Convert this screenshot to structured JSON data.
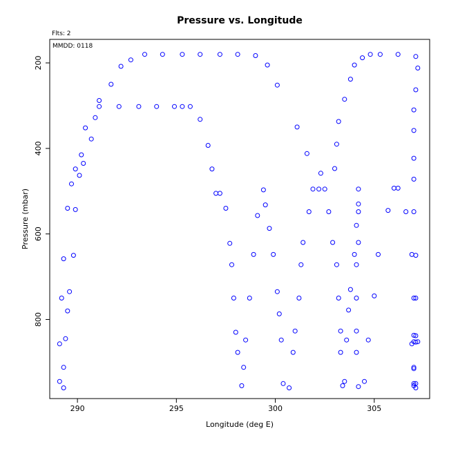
{
  "chart_data": {
    "type": "scatter",
    "title": "Pressure vs. Longitude",
    "annotations": {
      "flts": "Flts: 2",
      "mmdd": "MMDD: 0118"
    },
    "xlabel": "Longitude (deg E)",
    "ylabel": "Pressure (mbar)",
    "xlim": [
      288.6,
      307.8
    ],
    "ylim": [
      985,
      145
    ],
    "y_inverted": true,
    "x_ticks": [
      290,
      295,
      300,
      305
    ],
    "y_ticks": [
      200,
      400,
      600,
      800
    ],
    "grid": false,
    "marker": "open-circle",
    "marker_color": "#0000ff",
    "points": [
      [
        292.2,
        208
      ],
      [
        292.7,
        193
      ],
      [
        293.4,
        180
      ],
      [
        294.3,
        180
      ],
      [
        295.3,
        180
      ],
      [
        296.2,
        180
      ],
      [
        297.2,
        180
      ],
      [
        298.1,
        180
      ],
      [
        299.0,
        183
      ],
      [
        299.6,
        205
      ],
      [
        300.1,
        252
      ],
      [
        291.7,
        250
      ],
      [
        291.1,
        288
      ],
      [
        291.1,
        302
      ],
      [
        290.9,
        328
      ],
      [
        290.7,
        378
      ],
      [
        290.4,
        352
      ],
      [
        290.2,
        415
      ],
      [
        290.3,
        435
      ],
      [
        289.9,
        448
      ],
      [
        290.1,
        463
      ],
      [
        289.7,
        483
      ],
      [
        289.5,
        540
      ],
      [
        289.9,
        543
      ],
      [
        289.8,
        650
      ],
      [
        289.3,
        658
      ],
      [
        289.6,
        735
      ],
      [
        289.2,
        750
      ],
      [
        289.5,
        780
      ],
      [
        289.4,
        845
      ],
      [
        289.1,
        857
      ],
      [
        289.3,
        912
      ],
      [
        289.1,
        945
      ],
      [
        289.3,
        960
      ],
      [
        292.1,
        302
      ],
      [
        293.1,
        302
      ],
      [
        294.0,
        302
      ],
      [
        294.9,
        302
      ],
      [
        295.3,
        302
      ],
      [
        295.7,
        302
      ],
      [
        296.2,
        332
      ],
      [
        296.6,
        393
      ],
      [
        296.8,
        448
      ],
      [
        297.0,
        505
      ],
      [
        297.2,
        505
      ],
      [
        297.5,
        540
      ],
      [
        297.7,
        622
      ],
      [
        297.8,
        672
      ],
      [
        297.9,
        750
      ],
      [
        298.0,
        830
      ],
      [
        298.1,
        877
      ],
      [
        298.3,
        955
      ],
      [
        298.4,
        912
      ],
      [
        298.5,
        848
      ],
      [
        298.7,
        750
      ],
      [
        298.9,
        648
      ],
      [
        299.1,
        557
      ],
      [
        299.4,
        497
      ],
      [
        299.5,
        532
      ],
      [
        299.7,
        587
      ],
      [
        299.9,
        648
      ],
      [
        300.1,
        735
      ],
      [
        300.2,
        787
      ],
      [
        300.3,
        848
      ],
      [
        300.4,
        950
      ],
      [
        300.7,
        960
      ],
      [
        300.9,
        877
      ],
      [
        301.0,
        827
      ],
      [
        301.1,
        350
      ],
      [
        301.2,
        750
      ],
      [
        301.3,
        672
      ],
      [
        301.4,
        620
      ],
      [
        301.6,
        412
      ],
      [
        301.7,
        548
      ],
      [
        301.9,
        495
      ],
      [
        302.2,
        495
      ],
      [
        302.3,
        458
      ],
      [
        302.5,
        495
      ],
      [
        302.7,
        548
      ],
      [
        302.9,
        620
      ],
      [
        303.0,
        447
      ],
      [
        303.1,
        390
      ],
      [
        303.1,
        672
      ],
      [
        303.2,
        750
      ],
      [
        303.2,
        337
      ],
      [
        303.3,
        827
      ],
      [
        303.3,
        877
      ],
      [
        303.4,
        955
      ],
      [
        303.5,
        285
      ],
      [
        303.5,
        945
      ],
      [
        303.6,
        848
      ],
      [
        303.7,
        778
      ],
      [
        303.8,
        238
      ],
      [
        303.8,
        730
      ],
      [
        304.0,
        205
      ],
      [
        304.0,
        648
      ],
      [
        304.1,
        580
      ],
      [
        304.1,
        877
      ],
      [
        304.1,
        827
      ],
      [
        304.1,
        750
      ],
      [
        304.1,
        672
      ],
      [
        304.2,
        548
      ],
      [
        304.2,
        620
      ],
      [
        304.2,
        530
      ],
      [
        304.2,
        495
      ],
      [
        304.2,
        957
      ],
      [
        304.4,
        188
      ],
      [
        304.5,
        945
      ],
      [
        304.7,
        848
      ],
      [
        304.8,
        180
      ],
      [
        305.0,
        745
      ],
      [
        305.2,
        648
      ],
      [
        305.3,
        180
      ],
      [
        305.7,
        545
      ],
      [
        306.0,
        493
      ],
      [
        306.2,
        180
      ],
      [
        306.2,
        493
      ],
      [
        306.6,
        548
      ],
      [
        306.9,
        648
      ],
      [
        306.9,
        857
      ],
      [
        307.0,
        310
      ],
      [
        307.0,
        358
      ],
      [
        307.0,
        423
      ],
      [
        307.0,
        472
      ],
      [
        307.0,
        548
      ],
      [
        307.1,
        263
      ],
      [
        307.1,
        185
      ],
      [
        307.1,
        650
      ],
      [
        307.2,
        212
      ],
      [
        307.0,
        750
      ],
      [
        307.0,
        837
      ],
      [
        307.0,
        852
      ],
      [
        307.0,
        912
      ],
      [
        307.0,
        950
      ],
      [
        307.0,
        955
      ],
      [
        307.1,
        838
      ],
      [
        307.1,
        853
      ],
      [
        307.2,
        852
      ],
      [
        307.1,
        960
      ],
      [
        307.1,
        750
      ],
      [
        307.0,
        915
      ],
      [
        307.1,
        950
      ]
    ]
  }
}
